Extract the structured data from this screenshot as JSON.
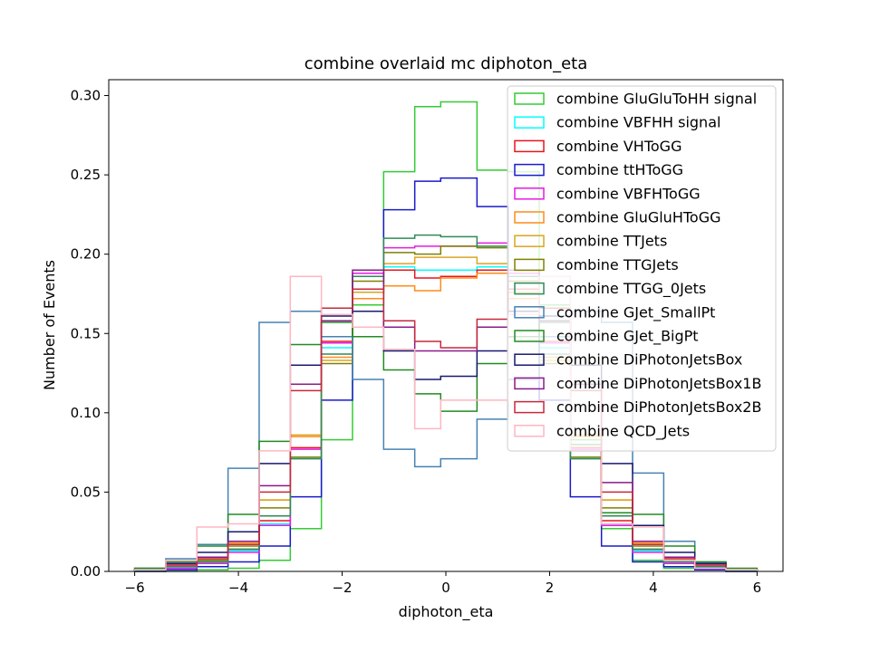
{
  "chart_data": {
    "type": "step-histogram",
    "title": "combine overlaid mc diphoton_eta",
    "xlabel": "diphoton_eta",
    "ylabel": "Number of Events",
    "xlim": [
      -6.5,
      6.5
    ],
    "ylim": [
      0,
      0.31
    ],
    "x_ticks": [
      -6,
      -4,
      -2,
      0,
      2,
      4,
      6
    ],
    "y_ticks": [
      0.0,
      0.05,
      0.1,
      0.15,
      0.2,
      0.25,
      0.3
    ],
    "y_tick_labels": [
      "0.00",
      "0.05",
      "0.10",
      "0.15",
      "0.20",
      "0.25",
      "0.30"
    ],
    "x_tick_labels": [
      "−6",
      "−4",
      "−2",
      "0",
      "2",
      "4",
      "6"
    ],
    "grid": false,
    "legend_position": "top-right",
    "bin_edges": [
      -6,
      -5.4,
      -4.8,
      -4.2,
      -3.6,
      -3.0,
      -2.4,
      -1.8,
      -1.2,
      -0.6,
      -0.1,
      0.6,
      1.2,
      1.8,
      2.4,
      3.0,
      3.6,
      4.2,
      4.8,
      5.4,
      6
    ],
    "series": [
      {
        "name": "combine GluGluToHH signal",
        "color": "#33cc33",
        "values": [
          0.0,
          0.0,
          0.001,
          0.002,
          0.007,
          0.027,
          0.083,
          0.168,
          0.252,
          0.293,
          0.296,
          0.253,
          0.252,
          0.168,
          0.083,
          0.027,
          0.007,
          0.002,
          0.001,
          0.0
        ]
      },
      {
        "name": "combine VBFHH signal",
        "color": "#00ffff",
        "values": [
          0.001,
          0.003,
          0.006,
          0.013,
          0.03,
          0.072,
          0.141,
          0.188,
          0.192,
          0.19,
          0.19,
          0.192,
          0.188,
          0.141,
          0.072,
          0.03,
          0.013,
          0.006,
          0.003,
          0.001
        ]
      },
      {
        "name": "combine VHToGG",
        "color": "#e8141d",
        "values": [
          0.001,
          0.003,
          0.007,
          0.014,
          0.032,
          0.078,
          0.145,
          0.178,
          0.19,
          0.185,
          0.186,
          0.19,
          0.178,
          0.145,
          0.078,
          0.032,
          0.014,
          0.007,
          0.003,
          0.001
        ]
      },
      {
        "name": "combine ttHToGG",
        "color": "#1a1acc",
        "values": [
          0.0,
          0.001,
          0.003,
          0.006,
          0.016,
          0.047,
          0.108,
          0.176,
          0.228,
          0.246,
          0.248,
          0.23,
          0.176,
          0.108,
          0.047,
          0.016,
          0.006,
          0.003,
          0.001,
          0.0
        ]
      },
      {
        "name": "combine VBFHToGG",
        "color": "#e61ae6",
        "values": [
          0.001,
          0.002,
          0.005,
          0.012,
          0.029,
          0.077,
          0.144,
          0.188,
          0.204,
          0.205,
          0.205,
          0.207,
          0.188,
          0.144,
          0.077,
          0.029,
          0.012,
          0.005,
          0.002,
          0.001
        ]
      },
      {
        "name": "combine GluGluHToGG",
        "color": "#ff8c1a",
        "values": [
          0.001,
          0.003,
          0.008,
          0.018,
          0.045,
          0.085,
          0.135,
          0.172,
          0.18,
          0.177,
          0.185,
          0.188,
          0.172,
          0.135,
          0.085,
          0.045,
          0.018,
          0.008,
          0.003,
          0.001
        ]
      },
      {
        "name": "combine TTJets",
        "color": "#daa520",
        "values": [
          0.001,
          0.003,
          0.007,
          0.019,
          0.045,
          0.086,
          0.133,
          0.176,
          0.194,
          0.198,
          0.198,
          0.194,
          0.176,
          0.133,
          0.086,
          0.045,
          0.019,
          0.007,
          0.003,
          0.001
        ]
      },
      {
        "name": "combine TTGJets",
        "color": "#808000",
        "values": [
          0.001,
          0.003,
          0.007,
          0.016,
          0.04,
          0.072,
          0.131,
          0.183,
          0.201,
          0.2,
          0.205,
          0.204,
          0.183,
          0.131,
          0.072,
          0.04,
          0.016,
          0.007,
          0.003,
          0.001
        ]
      },
      {
        "name": "combine TTGG_0Jets",
        "color": "#2e8b57",
        "values": [
          0.001,
          0.003,
          0.006,
          0.014,
          0.035,
          0.071,
          0.137,
          0.186,
          0.21,
          0.212,
          0.211,
          0.205,
          0.186,
          0.137,
          0.071,
          0.035,
          0.014,
          0.006,
          0.003,
          0.001
        ]
      },
      {
        "name": "combine GJet_SmallPt",
        "color": "#4682b4",
        "values": [
          0.002,
          0.008,
          0.017,
          0.065,
          0.157,
          0.164,
          0.148,
          0.121,
          0.077,
          0.066,
          0.071,
          0.096,
          0.121,
          0.148,
          0.164,
          0.157,
          0.062,
          0.019,
          0.006,
          0.001
        ]
      },
      {
        "name": "combine GJet_BigPt",
        "color": "#228b22",
        "values": [
          0.002,
          0.006,
          0.016,
          0.036,
          0.082,
          0.143,
          0.157,
          0.148,
          0.127,
          0.112,
          0.101,
          0.131,
          0.148,
          0.157,
          0.08,
          0.037,
          0.036,
          0.016,
          0.006,
          0.002
        ]
      },
      {
        "name": "combine DiPhotonJetsBox",
        "color": "#191970",
        "values": [
          0.001,
          0.005,
          0.012,
          0.025,
          0.068,
          0.13,
          0.161,
          0.164,
          0.139,
          0.121,
          0.123,
          0.139,
          0.164,
          0.161,
          0.13,
          0.068,
          0.029,
          0.012,
          0.005,
          0.001
        ]
      },
      {
        "name": "combine DiPhotonJetsBox1B",
        "color": "#8b1a8b",
        "values": [
          0.001,
          0.004,
          0.009,
          0.019,
          0.054,
          0.118,
          0.158,
          0.19,
          0.154,
          0.139,
          0.139,
          0.154,
          0.19,
          0.158,
          0.118,
          0.056,
          0.019,
          0.009,
          0.004,
          0.001
        ]
      },
      {
        "name": "combine DiPhotonJetsBox2B",
        "color": "#c8283c",
        "values": [
          0.001,
          0.004,
          0.008,
          0.017,
          0.05,
          0.114,
          0.166,
          0.178,
          0.158,
          0.145,
          0.141,
          0.159,
          0.178,
          0.166,
          0.114,
          0.05,
          0.017,
          0.008,
          0.004,
          0.001
        ]
      },
      {
        "name": "combine QCD_Jets",
        "color": "#ffb6c1",
        "values": [
          0.001,
          0.007,
          0.028,
          0.03,
          0.076,
          0.186,
          0.162,
          0.154,
          0.14,
          0.09,
          0.108,
          0.108,
          0.162,
          0.186,
          0.076,
          0.03,
          0.028,
          0.007,
          0.002,
          0.001
        ]
      }
    ]
  }
}
